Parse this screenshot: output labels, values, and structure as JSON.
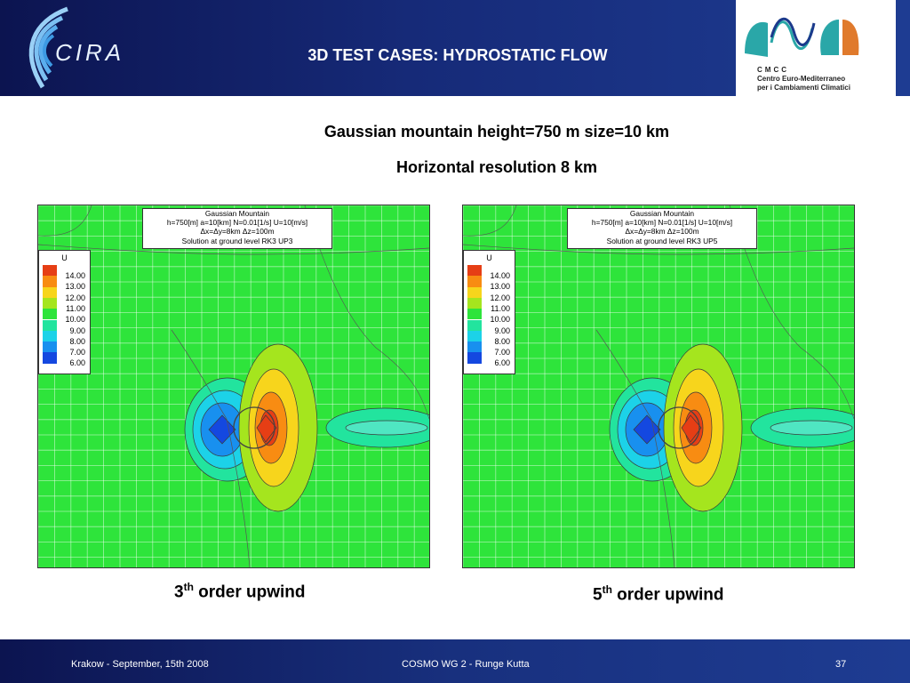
{
  "header": {
    "logo_text": "CIRA",
    "title": "3D TEST CASES:  HYDROSTATIC FLOW",
    "partner_logo": {
      "acronym": "CMCC",
      "line1": "Centro Euro-Mediterraneo",
      "line2": "per i Cambiamenti Climatici"
    }
  },
  "subtitle": {
    "line1": "Gaussian mountain  height=750 m   size=10 km",
    "line2": "Horizontal resolution 8 km"
  },
  "panels": [
    {
      "info": {
        "l1": "Gaussian Mountain",
        "l2": "h=750[m]  a=10[km]  N=0.01[1/s]  U=10[m/s]",
        "l3": "Δx=Δy=8km  Δz=100m",
        "l4": "Solution at ground level   RK3 UP3"
      },
      "caption_pre": "3",
      "caption_sup": "th",
      "caption_post": " order upwind"
    },
    {
      "info": {
        "l1": "Gaussian Mountain",
        "l2": "h=750[m]  a=10[km]  N=0.01[1/s]  U=10[m/s]",
        "l3": "Δx=Δy=8km  Δz=100m",
        "l4": "Solution at ground level   RK3 UP5"
      },
      "caption_pre": "5",
      "caption_sup": "th",
      "caption_post": " order upwind"
    }
  ],
  "legend": {
    "variable": "U",
    "levels": [
      "14.00",
      "13.00",
      "12.00",
      "11.00",
      "10.00",
      "9.00",
      "8.00",
      "7.00",
      "6.00"
    ],
    "colors": [
      "#e63e15",
      "#f88c12",
      "#f7d51c",
      "#a5e51e",
      "#2ee43b",
      "#22e49e",
      "#1cd2e8",
      "#1890ef",
      "#1448e0"
    ]
  },
  "footer": {
    "left": "Krakow - September, 15th 2008",
    "center": "COSMO WG 2 - Runge Kutta",
    "page": "37"
  }
}
